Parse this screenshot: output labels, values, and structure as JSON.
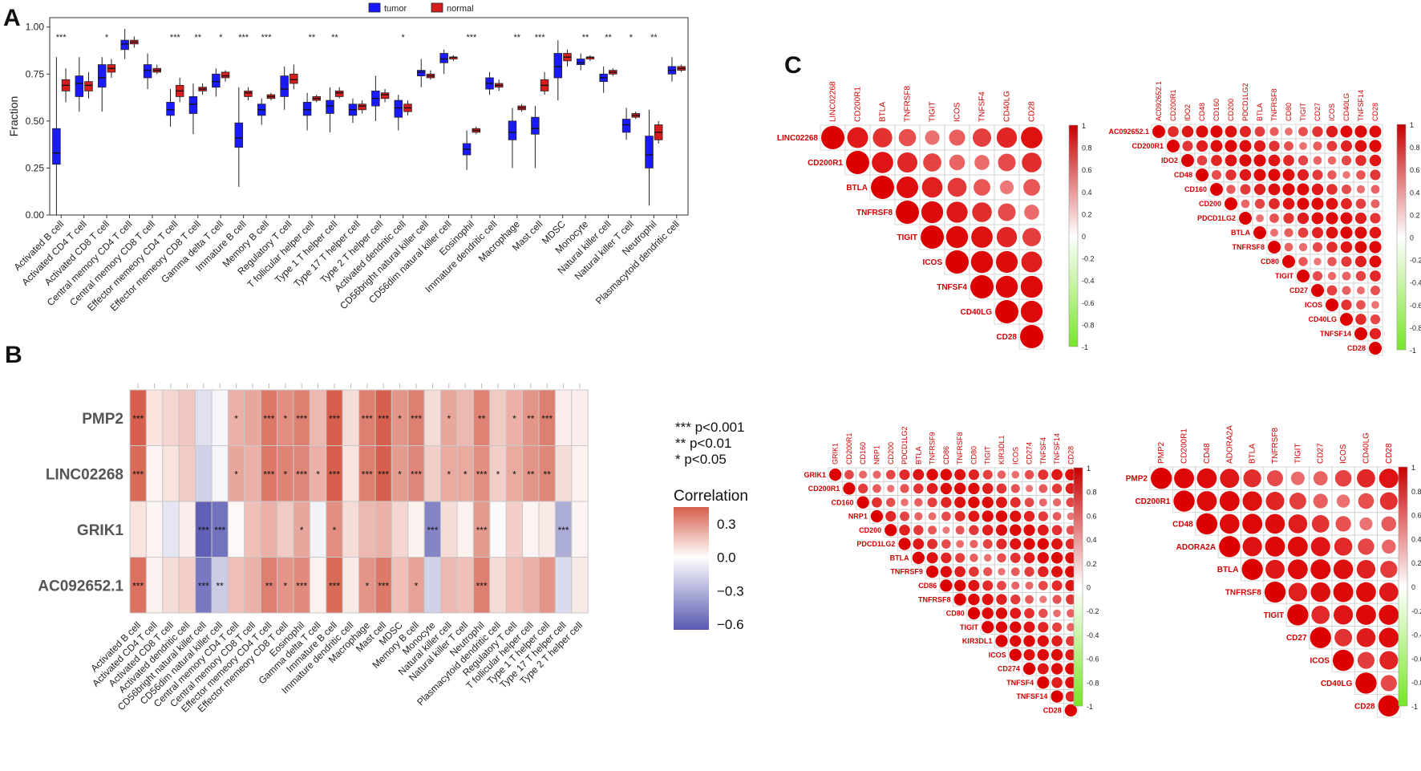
{
  "panel_labels": {
    "a": "A",
    "b": "B",
    "c": "C"
  },
  "chart_data": [
    {
      "id": "panel-a",
      "type": "boxplot",
      "ylabel": "Fraction",
      "ylim": [
        0,
        1.05
      ],
      "yticks": [
        "0.00",
        "0.25",
        "0.50",
        "0.75",
        "1.00"
      ],
      "legend": {
        "position": "top-center",
        "items": [
          {
            "name": "tumor",
            "color": "#1a1aff"
          },
          {
            "name": "normal",
            "color": "#d71e1e"
          }
        ]
      },
      "categories": [
        "Activated B cell",
        "Activated CD4 T cell",
        "Activated CD8 T cell",
        "Central memory CD4 T cell",
        "Central memory CD8 T cell",
        "Effector memeory CD4 T cell",
        "Effector memeory CD8 T cell",
        "Gamma delta T cell",
        "Immature  B cell",
        "Memory B cell",
        "Regulatory T cell",
        "T follicular helper cell",
        "Type 1 T helper cell",
        "Type 17 T helper cell",
        "Type 2 T helper cell",
        "Activated dendritic cell",
        "CD56bright natural killer cell",
        "CD56dim natural killer cell",
        "Eosinophil",
        "Immature dendritic cell",
        "Macrophage",
        "Mast cell",
        "MDSC",
        "Monocyte",
        "Natural killer cell",
        "Natural killer T cell",
        "Neutrophil",
        "Plasmacytoid dendritic cell"
      ],
      "significance": [
        "***",
        "",
        "*",
        "",
        "",
        "***",
        "**",
        "*",
        "***",
        "***",
        "",
        "**",
        "**",
        "",
        "",
        "*",
        "",
        "",
        "***",
        "",
        "**",
        "***",
        "",
        "**",
        "**",
        "*",
        "**",
        ""
      ],
      "tumor": [
        [
          0.0,
          0.27,
          0.33,
          0.46,
          0.84
        ],
        [
          0.55,
          0.63,
          0.7,
          0.74,
          0.84
        ],
        [
          0.55,
          0.68,
          0.73,
          0.8,
          0.84
        ],
        [
          0.83,
          0.88,
          0.91,
          0.93,
          0.99
        ],
        [
          0.67,
          0.73,
          0.77,
          0.8,
          0.86
        ],
        [
          0.47,
          0.53,
          0.56,
          0.6,
          0.67
        ],
        [
          0.43,
          0.54,
          0.59,
          0.63,
          0.7
        ],
        [
          0.63,
          0.68,
          0.71,
          0.75,
          0.78
        ],
        [
          0.15,
          0.36,
          0.41,
          0.49,
          0.68
        ],
        [
          0.48,
          0.53,
          0.56,
          0.59,
          0.62
        ],
        [
          0.56,
          0.63,
          0.67,
          0.74,
          0.79
        ],
        [
          0.45,
          0.53,
          0.56,
          0.6,
          0.65
        ],
        [
          0.44,
          0.54,
          0.58,
          0.61,
          0.68
        ],
        [
          0.49,
          0.53,
          0.56,
          0.59,
          0.62
        ],
        [
          0.5,
          0.58,
          0.62,
          0.66,
          0.74
        ],
        [
          0.45,
          0.52,
          0.57,
          0.61,
          0.64
        ],
        [
          0.68,
          0.74,
          0.76,
          0.77,
          0.83
        ],
        [
          0.75,
          0.81,
          0.83,
          0.86,
          0.88
        ],
        [
          0.24,
          0.32,
          0.35,
          0.38,
          0.45
        ],
        [
          0.64,
          0.67,
          0.7,
          0.73,
          0.76
        ],
        [
          0.25,
          0.4,
          0.44,
          0.5,
          0.57
        ],
        [
          0.25,
          0.43,
          0.46,
          0.52,
          0.58
        ],
        [
          0.61,
          0.73,
          0.79,
          0.86,
          0.93
        ],
        [
          0.77,
          0.8,
          0.81,
          0.83,
          0.86
        ],
        [
          0.65,
          0.71,
          0.73,
          0.75,
          0.79
        ],
        [
          0.4,
          0.44,
          0.48,
          0.51,
          0.57
        ],
        [
          0.05,
          0.25,
          0.32,
          0.42,
          0.56
        ],
        [
          0.71,
          0.75,
          0.77,
          0.79,
          0.84
        ]
      ],
      "normal": [
        [
          0.6,
          0.66,
          0.69,
          0.72,
          0.78
        ],
        [
          0.62,
          0.66,
          0.69,
          0.71,
          0.76
        ],
        [
          0.73,
          0.76,
          0.78,
          0.8,
          0.83
        ],
        [
          0.89,
          0.91,
          0.92,
          0.93,
          0.95
        ],
        [
          0.75,
          0.76,
          0.77,
          0.78,
          0.8
        ],
        [
          0.6,
          0.63,
          0.66,
          0.69,
          0.73
        ],
        [
          0.64,
          0.66,
          0.67,
          0.68,
          0.7
        ],
        [
          0.71,
          0.73,
          0.74,
          0.76,
          0.77
        ],
        [
          0.61,
          0.63,
          0.65,
          0.66,
          0.68
        ],
        [
          0.61,
          0.62,
          0.63,
          0.64,
          0.65
        ],
        [
          0.67,
          0.7,
          0.72,
          0.75,
          0.8
        ],
        [
          0.6,
          0.61,
          0.62,
          0.63,
          0.64
        ],
        [
          0.62,
          0.63,
          0.65,
          0.66,
          0.68
        ],
        [
          0.54,
          0.56,
          0.58,
          0.59,
          0.61
        ],
        [
          0.6,
          0.62,
          0.64,
          0.65,
          0.67
        ],
        [
          0.53,
          0.55,
          0.57,
          0.59,
          0.61
        ],
        [
          0.72,
          0.73,
          0.74,
          0.75,
          0.77
        ],
        [
          0.82,
          0.83,
          0.84,
          0.84,
          0.85
        ],
        [
          0.43,
          0.44,
          0.45,
          0.46,
          0.47
        ],
        [
          0.66,
          0.68,
          0.69,
          0.7,
          0.72
        ],
        [
          0.55,
          0.56,
          0.57,
          0.58,
          0.59
        ],
        [
          0.64,
          0.66,
          0.69,
          0.72,
          0.76
        ],
        [
          0.79,
          0.82,
          0.84,
          0.86,
          0.88
        ],
        [
          0.82,
          0.83,
          0.84,
          0.84,
          0.85
        ],
        [
          0.74,
          0.75,
          0.76,
          0.77,
          0.78
        ],
        [
          0.51,
          0.52,
          0.53,
          0.54,
          0.55
        ],
        [
          0.38,
          0.4,
          0.44,
          0.48,
          0.5
        ],
        [
          0.76,
          0.77,
          0.78,
          0.79,
          0.8
        ]
      ]
    },
    {
      "id": "panel-b",
      "type": "heatmap",
      "rows": [
        "PMP2",
        "LINC02268",
        "GRIK1",
        "AC092652.1"
      ],
      "columns": [
        "Activated B cell",
        "Activated CD4 T cell",
        "Activated CD8 T cell",
        "Activated dendritic cell",
        "CD56bright natural killer cell",
        "CD56dim natural killer cell",
        "Central memory CD4 T cell",
        "Central memory CD8 T cell",
        "Effector memeory CD4 T cell",
        "Effector memeory CD8 T cell",
        "Eosinophil",
        "Gamma delta T cell",
        "Immature  B cell",
        "Immature dendritic cell",
        "Macrophage",
        "Mast cell",
        "MDSC",
        "Memory B cell",
        "Monocyte",
        "Natural killer cell",
        "Natural killer T cell",
        "Neutrophil",
        "Plasmacytoid dendritic cell",
        "Regulatory T cell",
        "T follicular helper cell",
        "Type 1 T helper cell",
        "Type 17 T helper cell",
        "Type 2 T helper cell"
      ],
      "values": [
        [
          0.45,
          0.08,
          0.12,
          0.16,
          -0.12,
          -0.04,
          0.22,
          0.25,
          0.38,
          0.32,
          0.36,
          0.2,
          0.45,
          0.1,
          0.36,
          0.48,
          0.3,
          0.36,
          0.1,
          0.25,
          0.2,
          0.35,
          0.15,
          0.22,
          0.3,
          0.36,
          0.05,
          0.05
        ],
        [
          0.42,
          0.03,
          0.08,
          0.15,
          -0.18,
          -0.04,
          0.25,
          0.22,
          0.38,
          0.35,
          0.34,
          0.22,
          0.45,
          0.08,
          0.36,
          0.46,
          0.28,
          0.34,
          0.14,
          0.24,
          0.24,
          0.32,
          0.14,
          0.24,
          0.3,
          0.34,
          0.1,
          0.04
        ],
        [
          0.08,
          0.03,
          -0.1,
          0.05,
          -0.62,
          -0.55,
          0.02,
          0.18,
          0.22,
          0.15,
          0.25,
          -0.05,
          0.32,
          0.1,
          0.2,
          0.22,
          0.12,
          0.04,
          -0.48,
          0.1,
          0.04,
          0.28,
          -0.02,
          0.14,
          0.03,
          0.06,
          -0.32,
          0.03
        ],
        [
          0.4,
          0.04,
          0.1,
          0.14,
          -0.52,
          -0.2,
          0.18,
          0.22,
          0.36,
          0.3,
          0.33,
          0.04,
          0.42,
          0.06,
          0.3,
          0.38,
          0.18,
          0.26,
          -0.18,
          0.2,
          0.18,
          0.36,
          0.1,
          0.18,
          0.22,
          0.3,
          -0.14,
          0.06
        ]
      ],
      "stars": [
        [
          "***",
          "",
          "",
          "",
          "",
          "",
          "*",
          "",
          "***",
          "*",
          "***",
          "",
          "***",
          "",
          "***",
          "***",
          "*",
          "***",
          "",
          "*",
          "",
          "**",
          "",
          "*",
          "**",
          "***",
          "",
          ""
        ],
        [
          "***",
          "",
          "",
          "",
          "",
          "",
          "*",
          "",
          "***",
          "*",
          "***",
          "*",
          "***",
          "",
          "***",
          "***",
          "*",
          "***",
          "",
          "*",
          "*",
          "***",
          "*",
          "*",
          "**",
          "**",
          "",
          ""
        ],
        [
          "",
          "",
          "",
          "",
          "***",
          "***",
          "",
          "",
          "",
          "",
          "*",
          "",
          "*",
          "",
          "",
          "",
          "",
          "",
          "***",
          "",
          "",
          "***",
          "",
          "",
          "",
          "",
          "***",
          ""
        ],
        [
          "***",
          "",
          "",
          "",
          "***",
          "**",
          "",
          "",
          "**",
          "*",
          "***",
          "",
          "***",
          "",
          "*",
          "***",
          "",
          "*",
          "",
          "",
          "",
          "***",
          "",
          "",
          "",
          "",
          "",
          ""
        ]
      ],
      "legend": {
        "significance": [
          "*** p<0.001",
          "** p<0.01",
          "* p<0.05"
        ],
        "title": "Correlation",
        "ticks": [
          "0.3",
          "0.0",
          "−0.3",
          "−0.6"
        ],
        "tick_values": [
          0.3,
          0.0,
          -0.3,
          -0.6
        ],
        "range": [
          -0.65,
          0.45
        ]
      }
    },
    {
      "id": "panel-c-1",
      "type": "correlogram",
      "genes": [
        "LINC02268",
        "CD200R1",
        "BTLA",
        "TNFRSF8",
        "TIGIT",
        "ICOS",
        "TNFSF4",
        "CD40LG",
        "CD28"
      ],
      "colorbar_ticks": [
        "1",
        "0.8",
        "0.6",
        "0.4",
        "0.2",
        "0",
        "-0.2",
        "-0.4",
        "-0.6",
        "-0.8",
        "-1"
      ]
    },
    {
      "id": "panel-c-2",
      "type": "correlogram",
      "genes": [
        "AC092652.1",
        "CD200R1",
        "IDO2",
        "CD48",
        "CD160",
        "CD200",
        "PDCD1LG2",
        "BTLA",
        "TNFRSF8",
        "CD80",
        "TIGIT",
        "CD27",
        "ICOS",
        "CD40LG",
        "TNFSF14",
        "CD28"
      ],
      "colorbar_ticks": [
        "1",
        "0.8",
        "0.6",
        "0.4",
        "0.2",
        "0",
        "-0.2",
        "-0.4",
        "-0.6",
        "-0.8",
        "-1"
      ]
    },
    {
      "id": "panel-c-3",
      "type": "correlogram",
      "genes": [
        "GRIK1",
        "CD200R1",
        "CD160",
        "NRP1",
        "CD200",
        "PDCD1LG2",
        "BTLA",
        "TNFRSF9",
        "CD86",
        "TNFRSF8",
        "CD80",
        "TIGIT",
        "KIR3DL1",
        "ICOS",
        "CD274",
        "TNFSF4",
        "TNFSF14",
        "CD28"
      ],
      "colorbar_ticks": [
        "1",
        "0.8",
        "0.6",
        "0.4",
        "0.2",
        "0",
        "-0.2",
        "-0.4",
        "-0.6",
        "-0.8",
        "-1"
      ]
    },
    {
      "id": "panel-c-4",
      "type": "correlogram",
      "genes": [
        "PMP2",
        "CD200R1",
        "CD48",
        "ADORA2A",
        "BTLA",
        "TNFRSF8",
        "TIGIT",
        "CD27",
        "ICOS",
        "CD40LG",
        "CD28"
      ],
      "colorbar_ticks": [
        "1",
        "0.8",
        "0.6",
        "0.4",
        "0.2",
        "0",
        "-0.2",
        "-0.4",
        "-0.6",
        "-0.8",
        "-1"
      ]
    }
  ]
}
